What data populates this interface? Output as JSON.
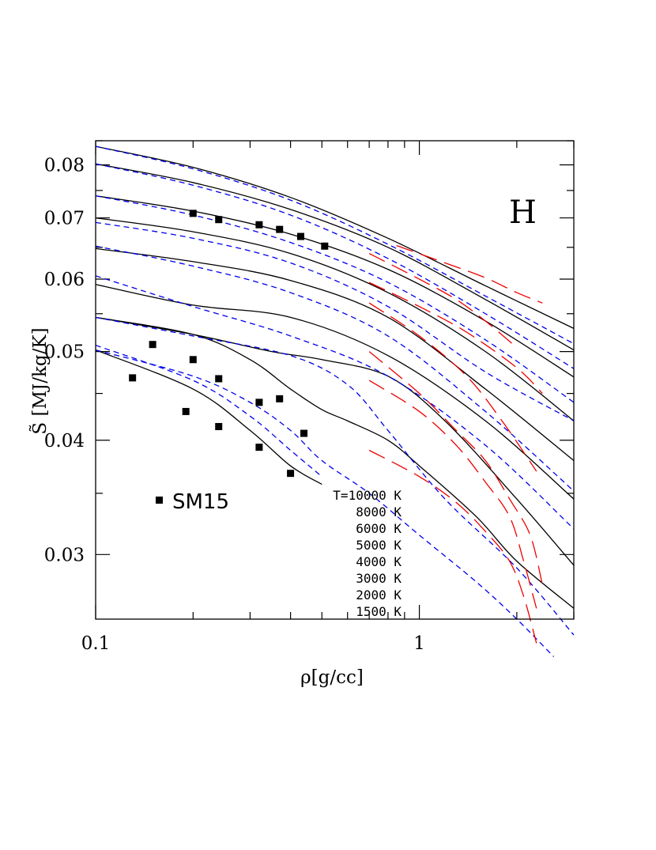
{
  "chart_data": {
    "type": "line",
    "xlabel": "ρ[g/cc]",
    "ylabel": "S̃ [MJ/kg/K]",
    "panel_label": "H",
    "x_scale": "log",
    "y_scale": "log",
    "xlim": [
      0.1,
      3.0
    ],
    "ylim": [
      0.0255,
      0.085
    ],
    "x_ticks": [
      {
        "value": 0.1,
        "label": "0.1"
      },
      {
        "value": 1,
        "label": "1"
      }
    ],
    "y_ticks": [
      {
        "value": 0.03,
        "label": "0.03"
      },
      {
        "value": 0.04,
        "label": "0.04"
      },
      {
        "value": 0.05,
        "label": "0.05"
      },
      {
        "value": 0.06,
        "label": "0.06"
      },
      {
        "value": 0.07,
        "label": "0.07"
      },
      {
        "value": 0.08,
        "label": "0.08"
      }
    ],
    "legend": {
      "placement": "bottom-center",
      "entries": [
        "T=10000 K",
        "8000 K",
        "6000 K",
        "5000 K",
        "4000 K",
        "3000 K",
        "2000 K",
        "1500 K"
      ]
    },
    "marker_legend": "SM15",
    "series": [
      {
        "style": "solid",
        "color": "#000000",
        "x": [
          0.1,
          0.2,
          0.4,
          0.8,
          1.6,
          3.0
        ],
        "y": [
          0.0838,
          0.0795,
          0.0737,
          0.0665,
          0.059,
          0.053
        ]
      },
      {
        "style": "solid",
        "color": "#000000",
        "x": [
          0.1,
          0.2,
          0.4,
          0.8,
          1.6,
          3.0
        ],
        "y": [
          0.0802,
          0.0765,
          0.0715,
          0.065,
          0.057,
          0.0502
        ]
      },
      {
        "style": "solid",
        "color": "#000000",
        "x": [
          0.1,
          0.2,
          0.4,
          0.8,
          1.6,
          3.0
        ],
        "y": [
          0.074,
          0.0712,
          0.0672,
          0.0615,
          0.054,
          0.0469
        ]
      },
      {
        "style": "solid",
        "color": "#000000",
        "x": [
          0.1,
          0.2,
          0.4,
          0.8,
          1.6,
          3.0
        ],
        "y": [
          0.07,
          0.0676,
          0.064,
          0.058,
          0.05,
          0.042
        ]
      },
      {
        "style": "solid",
        "color": "#000000",
        "x": [
          0.1,
          0.2,
          0.4,
          0.8,
          1.6,
          3.0
        ],
        "y": [
          0.0648,
          0.0627,
          0.0598,
          0.0545,
          0.0455,
          0.038
        ]
      },
      {
        "style": "solid",
        "color": "#000000",
        "x": [
          0.1,
          0.2,
          0.4,
          0.8,
          1.6,
          3.0
        ],
        "y": [
          0.0592,
          0.0562,
          0.0545,
          0.0495,
          0.042,
          0.0345
        ]
      },
      {
        "style": "solid",
        "color": "#000000",
        "x": [
          0.1,
          0.2,
          0.35,
          0.5,
          0.8,
          1.2,
          2.0,
          3.0
        ],
        "y": [
          0.0545,
          0.0522,
          0.05,
          0.049,
          0.047,
          0.042,
          0.0345,
          0.0292
        ]
      },
      {
        "style": "solid",
        "color": "#000000",
        "x": [
          0.1,
          0.2,
          0.3,
          0.4,
          0.5,
          0.6,
          0.8,
          1.0,
          1.5,
          2.0,
          3.0
        ],
        "y": [
          0.0545,
          0.0522,
          0.049,
          0.0455,
          0.0432,
          0.042,
          0.04,
          0.0375,
          0.033,
          0.0295,
          0.0262
        ]
      },
      {
        "style": "solid",
        "color": "#000000",
        "x": [
          0.1,
          0.2,
          0.3,
          0.4,
          0.5
        ],
        "y": [
          0.0502,
          0.0455,
          0.041,
          0.0375,
          0.0358
        ]
      },
      {
        "style": "dashed",
        "color": "#0000ee",
        "x": [
          0.1,
          0.2,
          0.4,
          0.8,
          1.6,
          3.0
        ],
        "y": [
          0.0838,
          0.0792,
          0.0732,
          0.0655,
          0.0575,
          0.051
        ]
      },
      {
        "style": "dashed",
        "color": "#0000ee",
        "x": [
          0.1,
          0.2,
          0.4,
          0.8,
          1.6,
          3.0
        ],
        "y": [
          0.0802,
          0.076,
          0.0705,
          0.0632,
          0.055,
          0.0479
        ]
      },
      {
        "style": "dashed",
        "color": "#0000ee",
        "x": [
          0.1,
          0.2,
          0.4,
          0.8,
          1.6,
          3.0
        ],
        "y": [
          0.074,
          0.0705,
          0.0658,
          0.0595,
          0.0515,
          0.044
        ]
      },
      {
        "style": "dashed",
        "color": "#0000ee",
        "x": [
          0.1,
          0.2,
          0.4,
          0.8,
          1.6,
          3.0
        ],
        "y": [
          0.0692,
          0.0665,
          0.0625,
          0.056,
          0.0475,
          0.042
        ]
      },
      {
        "style": "dashed",
        "color": "#0000ee",
        "x": [
          0.1,
          0.2,
          0.4,
          0.8,
          1.6,
          3.0
        ],
        "y": [
          0.0652,
          0.062,
          0.058,
          0.052,
          0.043,
          0.0352
        ]
      },
      {
        "style": "dashed",
        "color": "#0000ee",
        "x": [
          0.1,
          0.2,
          0.4,
          0.8,
          1.6,
          3.0
        ],
        "y": [
          0.0605,
          0.056,
          0.052,
          0.047,
          0.0395,
          0.032
        ]
      },
      {
        "style": "dashed",
        "color": "#0000ee",
        "x": [
          0.1,
          0.2,
          0.4,
          0.6,
          0.8,
          1.2,
          2.0,
          3.0
        ],
        "y": [
          0.0545,
          0.052,
          0.0495,
          0.046,
          0.041,
          0.0345,
          0.029,
          0.0245
        ]
      },
      {
        "style": "dashed",
        "color": "#0000ee",
        "x": [
          0.1,
          0.2,
          0.3,
          0.4,
          0.5,
          0.7,
          1.0,
          1.5,
          2.0,
          2.6
        ],
        "y": [
          0.0502,
          0.047,
          0.044,
          0.041,
          0.038,
          0.035,
          0.0315,
          0.028,
          0.0255,
          0.0232
        ]
      },
      {
        "style": "dashed",
        "color": "#0000ee",
        "x": [
          0.1,
          0.2,
          0.3,
          0.4,
          0.5
        ],
        "y": [
          0.0508,
          0.0465,
          0.0425,
          0.039,
          0.0365
        ]
      },
      {
        "style": "longdash",
        "color": "#ee0000",
        "x": [
          0.85,
          1.2,
          1.6,
          2.0,
          2.4
        ],
        "y": [
          0.0653,
          0.0625,
          0.0602,
          0.058,
          0.0565
        ]
      },
      {
        "style": "longdash",
        "color": "#ee0000",
        "x": [
          0.7,
          1.0,
          1.3,
          1.6,
          2.0
        ],
        "y": [
          0.064,
          0.06,
          0.057,
          0.054,
          0.0505
        ]
      },
      {
        "style": "longdash",
        "color": "#ee0000",
        "x": [
          0.7,
          1.0,
          1.4,
          2.0,
          2.4
        ],
        "y": [
          0.0595,
          0.056,
          0.0525,
          0.048,
          0.045
        ]
      },
      {
        "style": "longdash",
        "color": "#ee0000",
        "x": [
          0.7,
          1.0,
          1.4,
          1.8,
          2.3
        ],
        "y": [
          0.0565,
          0.052,
          0.047,
          0.042,
          0.037
        ]
      },
      {
        "style": "longdash",
        "color": "#ee0000",
        "x": [
          0.7,
          1.0,
          1.3,
          1.6,
          1.9,
          2.2,
          2.4
        ],
        "y": [
          0.05,
          0.045,
          0.041,
          0.038,
          0.0345,
          0.0315,
          0.0278
        ]
      },
      {
        "style": "longdash",
        "color": "#ee0000",
        "x": [
          0.7,
          1.0,
          1.3,
          1.6,
          1.9,
          2.1,
          2.3
        ],
        "y": [
          0.0465,
          0.043,
          0.0395,
          0.036,
          0.033,
          0.0295,
          0.0262
        ]
      },
      {
        "style": "longdash",
        "color": "#ee0000",
        "x": [
          0.7,
          1.0,
          1.3,
          1.6,
          1.9,
          2.1,
          2.3
        ],
        "y": [
          0.039,
          0.0365,
          0.0342,
          0.0318,
          0.0295,
          0.027,
          0.024
        ]
      }
    ],
    "scatter": {
      "name": "SM15",
      "marker": "square",
      "x": [
        0.2,
        0.24,
        0.32,
        0.37,
        0.43,
        0.51,
        0.15,
        0.2,
        0.24,
        0.32,
        0.37,
        0.13,
        0.19,
        0.24,
        0.32,
        0.44,
        0.4
      ],
      "y": [
        0.0708,
        0.0697,
        0.0688,
        0.068,
        0.0668,
        0.0652,
        0.0509,
        0.049,
        0.0467,
        0.044,
        0.0444,
        0.0468,
        0.043,
        0.0414,
        0.0393,
        0.0407,
        0.0368
      ]
    }
  }
}
